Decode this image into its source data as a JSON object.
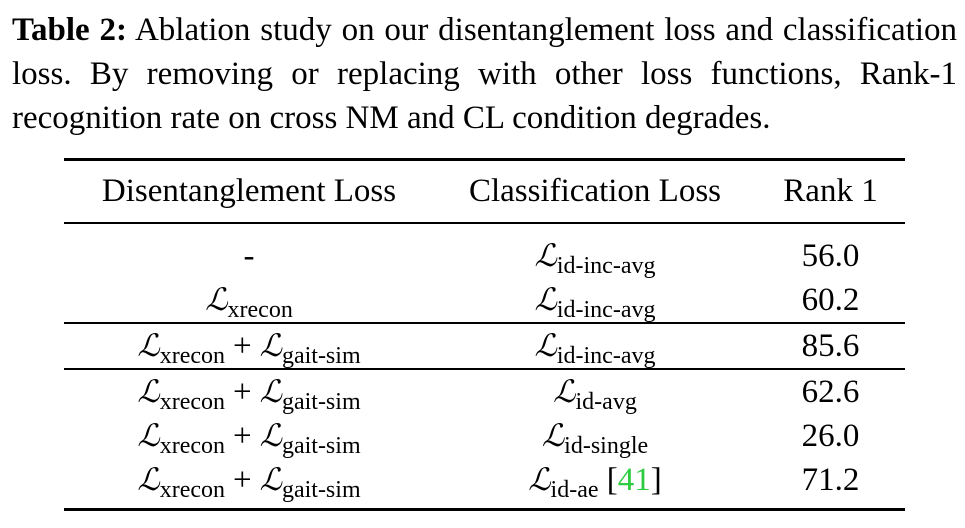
{
  "caption": {
    "label": "Table 2:",
    "text": "Ablation study on our disentanglement loss and classification loss. By removing or replacing with other loss functions, Rank-1 recognition rate on cross NM and CL condition degrades."
  },
  "table": {
    "headers": [
      "Disentanglement Loss",
      "Classification Loss",
      "Rank 1"
    ],
    "symbol": "ℒ",
    "plus": "+",
    "rows": [
      {
        "dis": "-",
        "cls_sub": "id-inc-avg",
        "rank1": "56.0"
      },
      {
        "dis_a": "xrecon",
        "cls_sub": "id-inc-avg",
        "rank1": "60.2"
      },
      {
        "dis_a": "xrecon",
        "dis_b": "gait-sim",
        "cls_sub": "id-inc-avg",
        "rank1": "85.6"
      },
      {
        "dis_a": "xrecon",
        "dis_b": "gait-sim",
        "cls_sub": "id-avg",
        "rank1": "62.6"
      },
      {
        "dis_a": "xrecon",
        "dis_b": "gait-sim",
        "cls_sub": "id-single",
        "rank1": "26.0"
      },
      {
        "dis_a": "xrecon",
        "dis_b": "gait-sim",
        "cls_sub": "id-ae",
        "cls_cite_open": "[",
        "cls_cite": "41",
        "cls_cite_close": "]",
        "rank1": "71.2"
      }
    ]
  }
}
